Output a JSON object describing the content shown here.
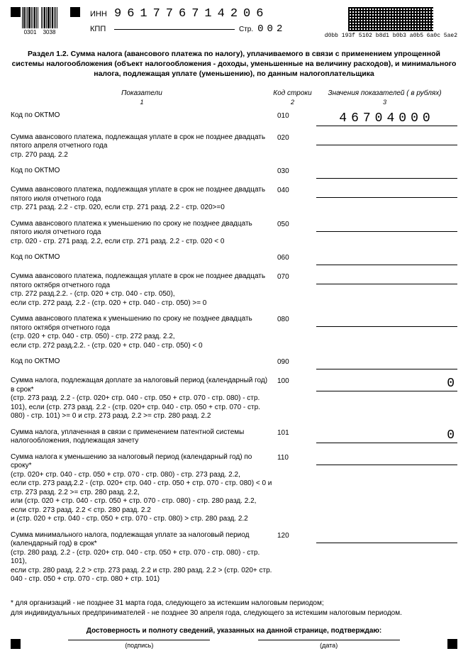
{
  "header": {
    "barcode_left_a": "0301",
    "barcode_left_b": "3038",
    "inn_label": "ИНН",
    "inn": "961776714206",
    "kpp_label": "КПП",
    "stp_label": "Стр.",
    "stp": "002",
    "qr_text": "d0bb 193f 5102 b8d1 b0b3 a0b5 6a0c 5ae2"
  },
  "section_title": "Раздел 1.2. Сумма налога (авансового платежа по налогу), уплачиваемого в связи с применением упрощенной системы налогообложения (объект налогообложения - доходы, уменьшенные на величину расходов), и минимального налога, подлежащая уплате (уменьшению), по данным налогоплательщика",
  "columns": {
    "col1": "Показатели",
    "col2": "Код строки",
    "col3": "Значения показателей ( в рублях)",
    "sub1": "1",
    "sub2": "2",
    "sub3": "3"
  },
  "rows": {
    "r010": {
      "label": "Код по ОКТМО",
      "code": "010",
      "value": "46704000"
    },
    "r020": {
      "label": "Сумма авансового платежа, подлежащая уплате в срок не позднее двадцать пятого апреля отчетного года\nстр. 270 разд. 2.2",
      "code": "020",
      "value": ""
    },
    "r030": {
      "label": "Код по ОКТМО",
      "code": "030",
      "value": ""
    },
    "r040": {
      "label": "Сумма авансового платежа, подлежащая уплате в срок не позднее двадцать пятого июля отчетного года\nстр. 271 разд. 2.2 - стр. 020, если стр. 271 разд. 2.2 - стр. 020>=0",
      "code": "040",
      "value": ""
    },
    "r050": {
      "label": "Сумма авансового платежа к уменьшению по сроку не позднее двадцать пятого июля отчетного года\nстр. 020 - стр. 271 разд. 2.2, если стр. 271 разд. 2.2 - стр. 020 < 0",
      "code": "050",
      "value": ""
    },
    "r060": {
      "label": "Код по ОКТМО",
      "code": "060",
      "value": ""
    },
    "r070": {
      "label": "Сумма авансового платежа, подлежащая уплате в срок не позднее двадцать пятого октября отчетного года\nстр. 272 разд.2.2. - (стр. 020 + стр. 040 - стр. 050),\nесли стр. 272 разд. 2.2 - (стр. 020 + стр. 040 - стр. 050) >= 0",
      "code": "070",
      "value": ""
    },
    "r080": {
      "label": "Сумма авансового платежа к уменьшению по сроку не позднее двадцать пятого октября отчетного года\n(стр. 020 + стр. 040 - стр. 050) - стр. 272 разд. 2.2,\nесли стр. 272 разд.2.2. - (стр. 020 + стр. 040 - стр. 050) < 0",
      "code": "080",
      "value": ""
    },
    "r090": {
      "label": "Код по ОКТМО",
      "code": "090",
      "value": ""
    },
    "r100": {
      "label": "Сумма налога, подлежащая доплате за налоговый период (календарный год) в срок*\n(стр. 273 разд. 2.2 - (стр. 020+ стр. 040 - стр. 050 + стр. 070 - стр. 080) - стр. 101), если (стр. 273 разд. 2.2 - (стр. 020+ стр. 040 - стр. 050 + стр. 070 - стр. 080) - стр. 101) >= 0 и стр. 273 разд. 2.2 >= стр. 280 разд. 2.2",
      "code": "100",
      "value": "0"
    },
    "r101": {
      "label": "Сумма налога, уплаченная в связи с применением патентной системы налогообложения, подлежащая зачету",
      "code": "101",
      "value": "0"
    },
    "r110": {
      "label": "Сумма налога к уменьшению за налоговый период (календарный год) по сроку*\n(стр. 020+ стр. 040 - стр. 050 + стр. 070 - стр. 080) - стр. 273 разд. 2.2,\nесли стр. 273 разд.2.2 - (стр. 020+ стр. 040 - стр. 050 + стр. 070 - стр. 080) < 0 и стр. 273 разд. 2.2 >= стр. 280 разд. 2.2,\nили (стр. 020 + стр. 040 - стр. 050 + стр. 070 - стр. 080) - стр. 280 разд. 2.2,\nесли стр. 273 разд. 2.2 < стр. 280 разд. 2.2\nи (стр. 020 + стр. 040 - стр. 050 + стр. 070 - стр. 080) > стр. 280 разд. 2.2",
      "code": "110",
      "value": ""
    },
    "r120": {
      "label": "Сумма минимального налога, подлежащая уплате за налоговый период (календарный год) в срок*\n(стр. 280 разд. 2.2 - (стр. 020+ стр. 040 - стр. 050 + стр. 070 - стр. 080) - стр. 101),\nесли стр. 280 разд. 2.2 > стр. 273 разд. 2.2 и стр. 280 разд. 2.2 > (стр. 020+ стр. 040 - стр. 050 + стр. 070 - стр. 080 + стр. 101)",
      "code": "120",
      "value": ""
    }
  },
  "footnote": "* для организаций - не позднее 31 марта года, следующего за истекшим налоговым периодом;\n  для индивидуальных предпринимателей - не позднее 30 апреля года, следующего за истекшим налоговым периодом.",
  "cert": {
    "title": "Достоверность и полноту сведений, указанных на данной странице, подтверждаю:",
    "sig": "(подпись)",
    "date": "(дата)"
  }
}
